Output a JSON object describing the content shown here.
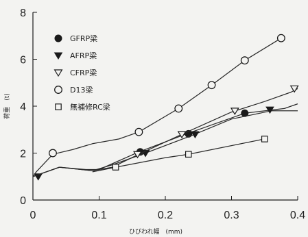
{
  "chart_data": {
    "type": "line",
    "title": "",
    "xlabel": "ひびわれ幅　(mm)",
    "ylabel": "荷重　(t)",
    "xlim": [
      0,
      0.4
    ],
    "ylim": [
      0,
      8
    ],
    "xticks": [
      "0",
      "0.1",
      "0.2",
      "0.3",
      "0.4"
    ],
    "yticks": [
      "0",
      "2",
      "4",
      "6",
      "8"
    ],
    "grid": false,
    "legend_position": "top-left",
    "series": [
      {
        "name": "GFRP梁",
        "marker": "filled-circle",
        "curve": [
          [
            0,
            1.0
          ],
          [
            0.04,
            1.4
          ],
          [
            0.08,
            1.3
          ],
          [
            0.1,
            1.3
          ],
          [
            0.16,
            2.05
          ],
          [
            0.23,
            2.8
          ],
          [
            0.26,
            3.1
          ],
          [
            0.32,
            3.7
          ],
          [
            0.38,
            3.9
          ],
          [
            0.4,
            4.1
          ]
        ],
        "markers": [
          [
            0.162,
            2.05
          ],
          [
            0.235,
            2.82
          ],
          [
            0.32,
            3.7
          ]
        ]
      },
      {
        "name": "AFRP梁",
        "marker": "filled-down-triangle",
        "curve": [
          [
            0,
            1.0
          ],
          [
            0.04,
            1.4
          ],
          [
            0.09,
            1.25
          ],
          [
            0.12,
            1.5
          ],
          [
            0.17,
            2.0
          ],
          [
            0.24,
            2.75
          ],
          [
            0.3,
            3.45
          ],
          [
            0.36,
            3.8
          ],
          [
            0.4,
            3.8
          ]
        ],
        "markers": [
          [
            0.008,
            1.0
          ],
          [
            0.17,
            2.0
          ],
          [
            0.245,
            2.8
          ],
          [
            0.358,
            3.85
          ]
        ]
      },
      {
        "name": "CFRP梁",
        "marker": "open-down-triangle",
        "curve": [
          [
            0,
            1.0
          ],
          [
            0.04,
            1.4
          ],
          [
            0.09,
            1.25
          ],
          [
            0.12,
            1.4
          ],
          [
            0.16,
            1.95
          ],
          [
            0.225,
            2.8
          ],
          [
            0.3,
            3.75
          ],
          [
            0.35,
            4.2
          ],
          [
            0.39,
            4.6
          ],
          [
            0.4,
            4.75
          ]
        ],
        "markers": [
          [
            0.158,
            1.95
          ],
          [
            0.225,
            2.8
          ],
          [
            0.305,
            3.8
          ],
          [
            0.395,
            4.75
          ]
        ]
      },
      {
        "name": "D13梁",
        "marker": "open-circle",
        "curve": [
          [
            0,
            1.0
          ],
          [
            0.005,
            1.2
          ],
          [
            0.03,
            1.95
          ],
          [
            0.06,
            2.15
          ],
          [
            0.09,
            2.4
          ],
          [
            0.13,
            2.6
          ],
          [
            0.16,
            2.9
          ],
          [
            0.22,
            3.9
          ],
          [
            0.27,
            4.9
          ],
          [
            0.32,
            5.95
          ],
          [
            0.375,
            6.9
          ]
        ],
        "markers": [
          [
            0.03,
            2.0
          ],
          [
            0.16,
            2.9
          ],
          [
            0.22,
            3.9
          ],
          [
            0.27,
            4.9
          ],
          [
            0.32,
            5.95
          ],
          [
            0.375,
            6.9
          ]
        ]
      },
      {
        "name": "無補修RC梁",
        "marker": "open-square",
        "curve": [
          [
            0.09,
            1.2
          ],
          [
            0.125,
            1.4
          ],
          [
            0.2,
            1.8
          ],
          [
            0.235,
            1.95
          ],
          [
            0.35,
            2.6
          ]
        ],
        "markers": [
          [
            0.125,
            1.4
          ],
          [
            0.235,
            1.95
          ],
          [
            0.35,
            2.6
          ]
        ]
      }
    ]
  }
}
